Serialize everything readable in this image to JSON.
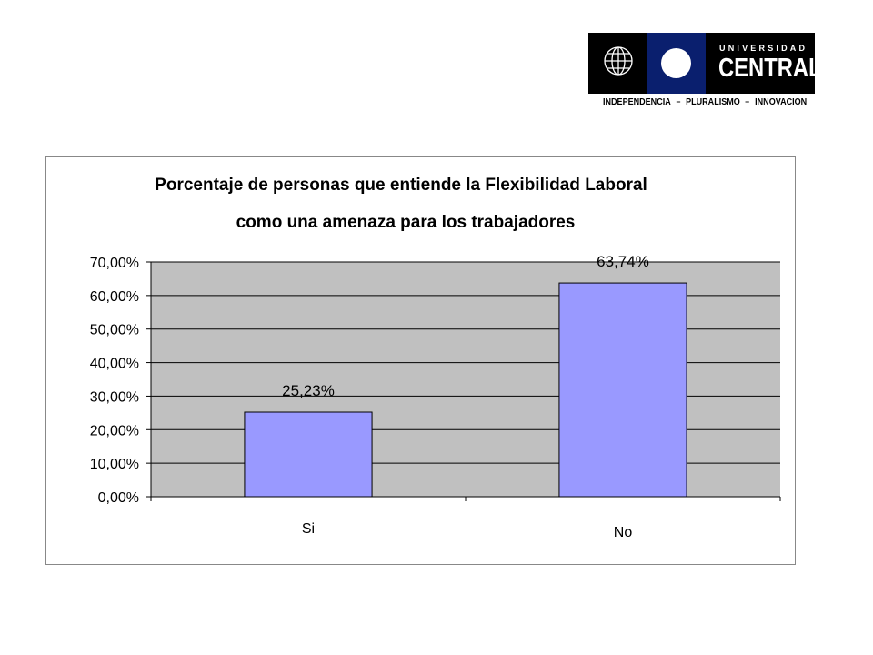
{
  "logo": {
    "line1": "UNIVERSIDAD",
    "line2": "CENTRAL",
    "motto": [
      "INDEPENDENCIA",
      "PLURALISMO",
      "INNOVACION"
    ]
  },
  "chart_data": {
    "type": "bar",
    "title": "Porcentaje de personas que entiende la Flexibilidad Laboral",
    "subtitle": "como una amenaza para los trabajadores",
    "categories": [
      "Si",
      "No"
    ],
    "values": [
      25.23,
      63.74
    ],
    "data_labels": [
      "25,23%",
      "63,74%"
    ],
    "ylim": [
      0,
      70
    ],
    "yticks": [
      "0,00%",
      "10,00%",
      "20,00%",
      "30,00%",
      "40,00%",
      "50,00%",
      "60,00%",
      "70,00%"
    ],
    "grid": true,
    "legend": "none",
    "colors": {
      "bar": "#9999ff",
      "plot_bg": "#c0c0c0",
      "grid": "#000000"
    }
  }
}
